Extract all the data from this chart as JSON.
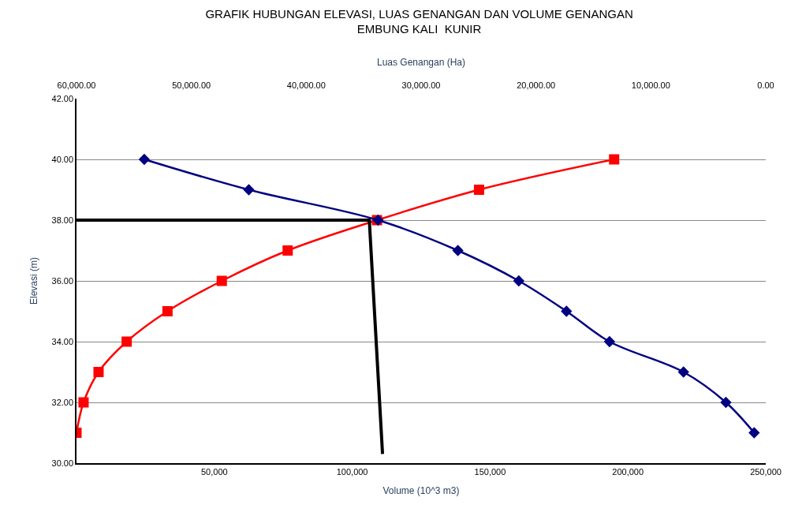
{
  "chart_data": {
    "type": "line",
    "title": "GRAFIK HUBUNGAN ELEVASI, LUAS GENANGAN DAN VOLUME GENANGAN\nEMBUNG KALI  KUNIR",
    "xlabel": "Volume (10^3 m3)",
    "x2label": "Luas Genangan (Ha)",
    "ylabel": "Elevasi (m)",
    "xlim": [
      0,
      250000
    ],
    "xticks": [
      {
        "value": 50000,
        "label": "50,000"
      },
      {
        "value": 100000,
        "label": "100,000"
      },
      {
        "value": 150000,
        "label": "150,000"
      },
      {
        "value": 200000,
        "label": "200,000"
      },
      {
        "value": 250000,
        "label": "250,000"
      }
    ],
    "x2lim": [
      60000,
      0
    ],
    "x2ticks": [
      {
        "value": 60000,
        "label": "60,000.00"
      },
      {
        "value": 50000,
        "label": "50,000.00"
      },
      {
        "value": 40000,
        "label": "40,000.00"
      },
      {
        "value": 30000,
        "label": "30,000.00"
      },
      {
        "value": 20000,
        "label": "20,000.00"
      },
      {
        "value": 10000,
        "label": "10,000.00"
      },
      {
        "value": 0,
        "label": "0.00"
      }
    ],
    "ylim": [
      30,
      42
    ],
    "yticks": [
      {
        "value": 30,
        "label": "30.00"
      },
      {
        "value": 32,
        "label": "32.00"
      },
      {
        "value": 34,
        "label": "34.00"
      },
      {
        "value": 36,
        "label": "36.00"
      },
      {
        "value": 38,
        "label": "38.00"
      },
      {
        "value": 40,
        "label": "40.00"
      },
      {
        "value": 42,
        "label": "42.00"
      }
    ],
    "grid": "y",
    "series": [
      {
        "color": "#ff0000",
        "marker": "square",
        "x": [
          0,
          2560,
          8000,
          18200,
          33000,
          52700,
          76600,
          109000,
          146000,
          195000
        ],
        "values": [
          31,
          32,
          33,
          34,
          35,
          36,
          37,
          38,
          39,
          40
        ]
      },
      {
        "color": "#000080",
        "marker": "diamond",
        "axis": "x2",
        "x": [
          54100,
          45000,
          33750,
          26800,
          21500,
          17350,
          13600,
          7160,
          3470,
          1010
        ],
        "values": [
          40,
          39,
          38,
          37,
          36,
          35,
          34,
          33,
          32,
          31
        ]
      },
      {
        "color": "#000000",
        "marker": "none",
        "x": [
          0,
          106200,
          111000
        ],
        "values": [
          38,
          38,
          30.3
        ]
      }
    ]
  }
}
